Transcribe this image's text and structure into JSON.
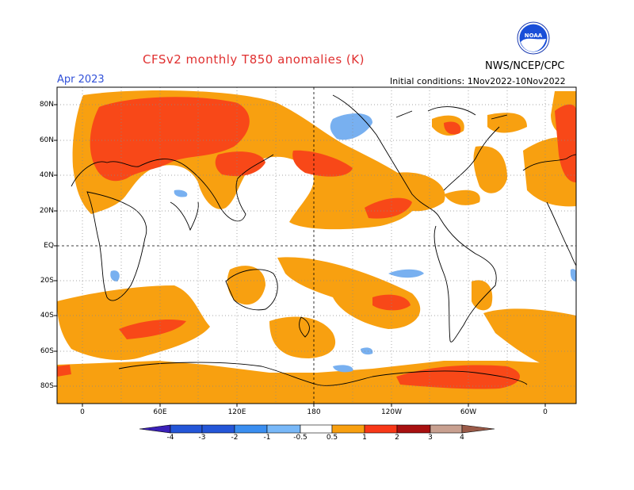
{
  "header": {
    "title": "CFSv2 monthly T850 anomalies (K)",
    "month": "Apr 2023",
    "agency": "NWS/NCEP/CPC",
    "init": "Initial conditions: 1Nov2022-10Nov2022",
    "logo_text": "NOAA"
  },
  "map": {
    "lat_labels": [
      "80N",
      "60N",
      "40N",
      "20N",
      "EQ",
      "20S",
      "40S",
      "60S",
      "80S"
    ],
    "lon_labels": [
      "0",
      "60E",
      "120E",
      "180",
      "120W",
      "60W",
      "0"
    ]
  },
  "colorbar": {
    "labels": [
      "-4",
      "-3",
      "-2",
      "-1",
      "-0.5",
      "0.5",
      "1",
      "2",
      "3",
      "4"
    ],
    "colors": [
      "#3a20b8",
      "#2456d8",
      "#3a8ef0",
      "#78b8f8",
      "#ffffff",
      "#f8a010",
      "#f83818",
      "#a81010",
      "#c8a090",
      "#9a5a48"
    ]
  },
  "legend_colors": {
    "warm_low": "#f8a010",
    "warm_mid": "#f84818",
    "cool_low": "#78b0f0"
  }
}
